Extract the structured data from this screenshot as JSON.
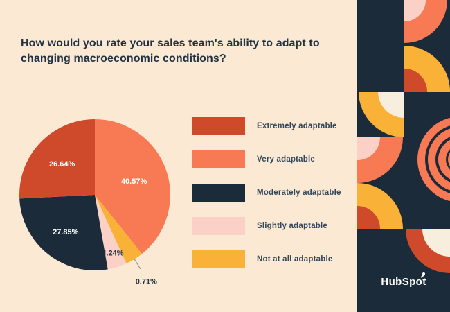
{
  "chart_data": {
    "type": "pie",
    "title": "How would you rate your sales team's ability to adapt to changing macroeconomic conditions?",
    "unit": "%",
    "legend_position": "right",
    "series": [
      {
        "label": "Extremely adaptable",
        "value": 26.64,
        "display": "26.64%",
        "color": "#CE4A2B"
      },
      {
        "label": "Very adaptable",
        "value": 40.57,
        "display": "40.57%",
        "color": "#F87A55"
      },
      {
        "label": "Moderately adaptable",
        "value": 27.85,
        "display": "27.85%",
        "color": "#1B2B39"
      },
      {
        "label": "Slightly adaptable",
        "value": 4.24,
        "display": "4.24%",
        "color": "#FBD0C7"
      },
      {
        "label": "Not at all adaptable",
        "value": 0.71,
        "display": "0.71%",
        "color": "#F9B237"
      }
    ],
    "clockwise_order_from_top": [
      1,
      4,
      3,
      2,
      0
    ]
  },
  "logo": {
    "text": "HubSpot",
    "prefix": "HubSp",
    "sprocket_letter": "o",
    "suffix": "t"
  },
  "palette": {
    "cream": "#FBE9D3",
    "cream_light": "#F8EEDE",
    "navy": "#1B2B39",
    "orange": "#F87A55",
    "red": "#CE4A2B",
    "yellow": "#F9B237",
    "pink": "#FBD0C7",
    "text_dark": "#213343",
    "text_body": "#33475B",
    "leader_line": "#7B8794"
  }
}
